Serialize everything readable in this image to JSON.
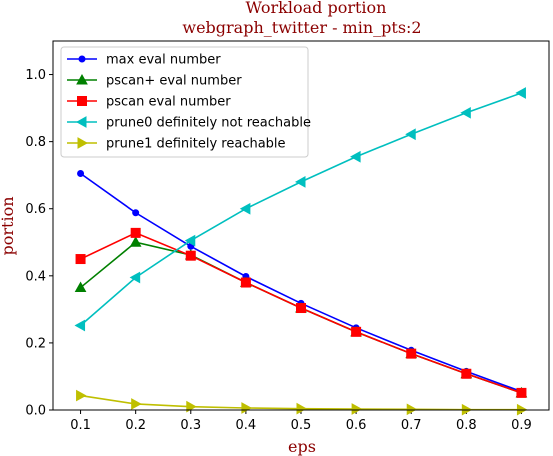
{
  "chart_data": {
    "type": "line",
    "title": "Workload portion",
    "subtitle": "webgraph_twitter - min_pts:2",
    "xlabel": "eps",
    "ylabel": "portion",
    "x": [
      0.1,
      0.2,
      0.3,
      0.4,
      0.5,
      0.6,
      0.7,
      0.8,
      0.9
    ],
    "xlim": [
      0.05,
      0.95
    ],
    "ylim": [
      0.0,
      1.1
    ],
    "xticks": [
      "0.1",
      "0.2",
      "0.3",
      "0.4",
      "0.5",
      "0.6",
      "0.7",
      "0.8",
      "0.9"
    ],
    "yticks": [
      "0.0",
      "0.2",
      "0.4",
      "0.6",
      "0.8",
      "1.0"
    ],
    "grid": false,
    "legend_position": "upper-left",
    "series": [
      {
        "name": "max eval number",
        "color": "#0000ff",
        "marker": "dot",
        "values": [
          0.705,
          0.588,
          0.488,
          0.398,
          0.318,
          0.245,
          0.178,
          0.115,
          0.055
        ]
      },
      {
        "name": "pscan+ eval number",
        "color": "#008000",
        "marker": "triangle-up",
        "values": [
          0.365,
          0.5,
          0.462,
          0.38,
          0.304,
          0.233,
          0.168,
          0.108,
          0.051
        ]
      },
      {
        "name": "pscan eval number",
        "color": "#ff0000",
        "marker": "square",
        "values": [
          0.45,
          0.528,
          0.46,
          0.38,
          0.304,
          0.233,
          0.168,
          0.108,
          0.051
        ]
      },
      {
        "name": "prune0 definitely not reachable",
        "color": "#00bfbf",
        "marker": "triangle-left",
        "values": [
          0.252,
          0.395,
          0.505,
          0.6,
          0.68,
          0.755,
          0.822,
          0.886,
          0.945
        ]
      },
      {
        "name": "prune1 definitely reachable",
        "color": "#bfbf00",
        "marker": "triangle-right",
        "values": [
          0.043,
          0.018,
          0.01,
          0.006,
          0.004,
          0.003,
          0.002,
          0.001,
          0.001
        ]
      }
    ]
  }
}
